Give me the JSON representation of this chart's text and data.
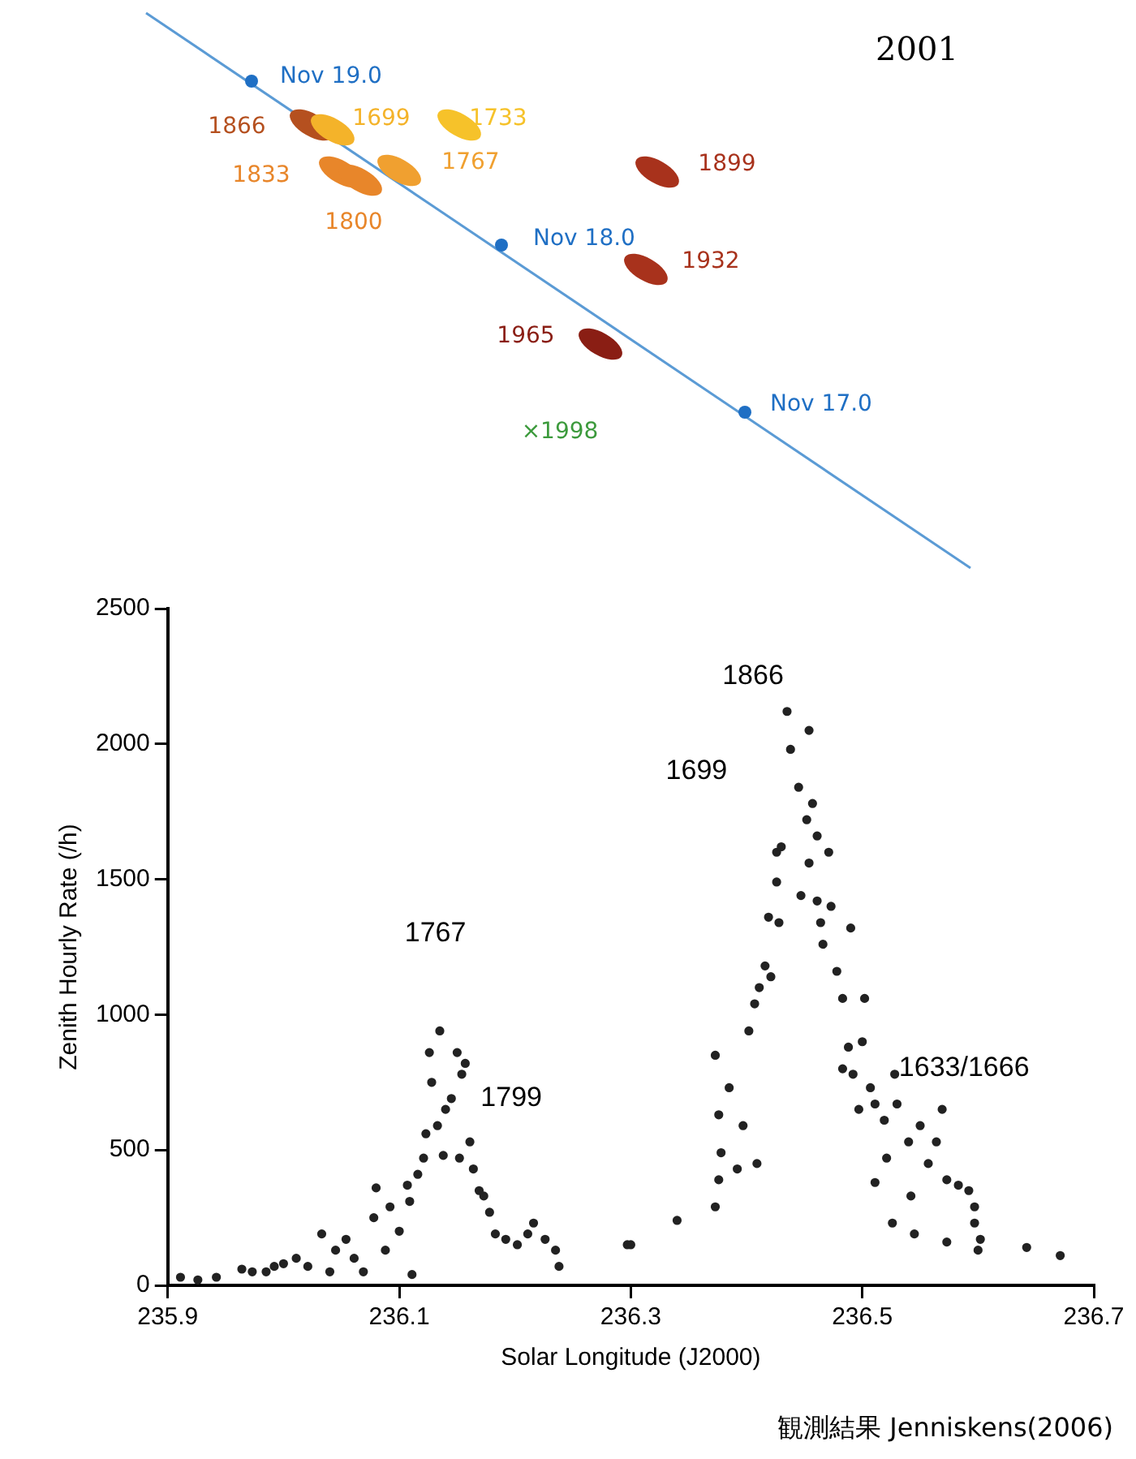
{
  "chart_data": [
    {
      "type": "other",
      "title": "2001",
      "annotations": [
        "Nov 19.0",
        "Nov 18.0",
        "Nov 17.0",
        "1866",
        "1699",
        "1733",
        "1833",
        "1767",
        "1800",
        "1899",
        "1932",
        "1965",
        "×1998"
      ]
    },
    {
      "type": "scatter",
      "xlabel": "Solar Longitude (J2000)",
      "ylabel": "Zenith Hourly Rate (/h)",
      "color": "#222222",
      "marker": "circle",
      "grid": false,
      "legend": false,
      "xlim": [
        235.9,
        236.7
      ],
      "xticks": [
        235.9,
        236.1,
        236.3,
        236.5,
        236.7
      ],
      "ylim": [
        0,
        2500
      ],
      "yticks": [
        0,
        500,
        1000,
        1500,
        2000,
        2500
      ],
      "x": [
        235.911,
        235.926,
        235.942,
        235.964,
        235.973,
        235.985,
        235.992,
        236.0,
        236.011,
        236.021,
        236.033,
        236.04,
        236.045,
        236.054,
        236.061,
        236.069,
        236.08,
        236.078,
        236.088,
        236.092,
        236.1,
        236.107,
        236.109,
        236.111,
        236.116,
        236.121,
        236.123,
        236.126,
        236.128,
        236.133,
        236.135,
        236.138,
        236.14,
        236.145,
        236.15,
        236.152,
        236.154,
        236.157,
        236.161,
        236.164,
        236.169,
        236.173,
        236.178,
        236.183,
        236.192,
        236.202,
        236.211,
        236.216,
        236.226,
        236.235,
        236.238,
        236.297,
        236.3,
        236.34,
        236.373,
        236.376,
        236.378,
        236.376,
        236.373,
        236.385,
        236.392,
        236.397,
        236.402,
        236.409,
        236.407,
        236.411,
        236.416,
        236.421,
        236.419,
        236.426,
        236.428,
        236.426,
        236.43,
        236.435,
        236.438,
        236.445,
        236.454,
        236.452,
        236.454,
        236.457,
        236.461,
        236.447,
        236.471,
        236.461,
        236.464,
        236.473,
        236.466,
        236.478,
        236.483,
        236.49,
        236.502,
        236.488,
        236.492,
        236.483,
        236.497,
        236.5,
        236.507,
        236.511,
        236.519,
        236.528,
        236.53,
        236.521,
        236.511,
        236.526,
        236.54,
        236.542,
        236.545,
        236.55,
        236.557,
        236.569,
        236.564,
        236.573,
        236.573,
        236.583,
        236.592,
        236.597,
        236.6,
        236.602,
        236.597,
        236.642,
        236.671
      ],
      "values": [
        30,
        20,
        30,
        60,
        50,
        50,
        70,
        80,
        100,
        70,
        190,
        50,
        130,
        170,
        100,
        50,
        360,
        250,
        130,
        290,
        200,
        370,
        310,
        40,
        410,
        470,
        560,
        860,
        750,
        590,
        940,
        480,
        650,
        690,
        860,
        470,
        780,
        820,
        530,
        430,
        350,
        330,
        270,
        190,
        170,
        150,
        190,
        230,
        170,
        130,
        70,
        150,
        150,
        240,
        290,
        390,
        490,
        630,
        850,
        730,
        430,
        590,
        940,
        450,
        1040,
        1100,
        1180,
        1140,
        1360,
        1490,
        1340,
        1600,
        1620,
        2120,
        1980,
        1840,
        2050,
        1720,
        1560,
        1780,
        1660,
        1440,
        1600,
        1420,
        1340,
        1400,
        1260,
        1160,
        1060,
        1320,
        1060,
        880,
        780,
        800,
        650,
        900,
        730,
        670,
        610,
        780,
        670,
        470,
        380,
        230,
        530,
        330,
        190,
        590,
        450,
        650,
        530,
        390,
        160,
        370,
        350,
        290,
        130,
        170,
        230,
        140,
        110
      ],
      "annotations": [
        "1767",
        "1799",
        "1699",
        "1866",
        "1633/1666",
        "観測結果 Jenniskens(2006)"
      ]
    }
  ]
}
